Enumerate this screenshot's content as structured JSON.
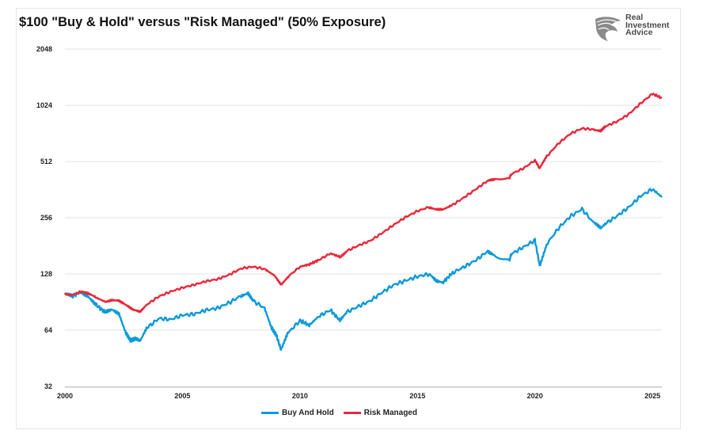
{
  "title": "$100 \"Buy & Hold\" versus \"Risk Managed\" (50% Exposure)",
  "logo": {
    "line1": "Real",
    "line2": "Investment",
    "line3": "Advice",
    "icon": "eagle-head-icon"
  },
  "chart_data": {
    "type": "line",
    "title": "$100 \"Buy & Hold\" versus \"Risk Managed\" (50% Exposure)",
    "xlabel": "",
    "ylabel": "",
    "y_scale": "log2",
    "ylim": [
      32,
      2048
    ],
    "xlim": [
      2000,
      2025.4
    ],
    "y_ticks": [
      "32",
      "64",
      "128",
      "256",
      "512",
      "1024",
      "2048"
    ],
    "x_ticks": [
      "2000",
      "2005",
      "2010",
      "2015",
      "2020",
      "2025"
    ],
    "grid": true,
    "legend": "bottom-center",
    "series": [
      {
        "name": "Buy And Hold",
        "color": "#0e9ad7",
        "points": [
          [
            2000.0,
            100
          ],
          [
            2000.3,
            97
          ],
          [
            2000.7,
            103
          ],
          [
            2001.0,
            97
          ],
          [
            2001.3,
            88
          ],
          [
            2001.7,
            80
          ],
          [
            2002.0,
            83
          ],
          [
            2002.3,
            79
          ],
          [
            2002.6,
            62
          ],
          [
            2002.8,
            56
          ],
          [
            2003.0,
            58
          ],
          [
            2003.2,
            56
          ],
          [
            2003.5,
            66
          ],
          [
            2004.0,
            74
          ],
          [
            2004.5,
            73
          ],
          [
            2005.0,
            77
          ],
          [
            2005.5,
            78
          ],
          [
            2006.0,
            82
          ],
          [
            2006.5,
            84
          ],
          [
            2007.0,
            90
          ],
          [
            2007.5,
            98
          ],
          [
            2007.8,
            101
          ],
          [
            2008.0,
            92
          ],
          [
            2008.5,
            84
          ],
          [
            2008.8,
            66
          ],
          [
            2009.0,
            60
          ],
          [
            2009.2,
            50
          ],
          [
            2009.5,
            62
          ],
          [
            2010.0,
            72
          ],
          [
            2010.4,
            68
          ],
          [
            2010.8,
            76
          ],
          [
            2011.3,
            82
          ],
          [
            2011.7,
            72
          ],
          [
            2012.0,
            80
          ],
          [
            2012.5,
            86
          ],
          [
            2013.0,
            92
          ],
          [
            2013.5,
            102
          ],
          [
            2014.0,
            112
          ],
          [
            2014.5,
            118
          ],
          [
            2015.0,
            124
          ],
          [
            2015.5,
            128
          ],
          [
            2015.8,
            118
          ],
          [
            2016.1,
            116
          ],
          [
            2016.5,
            130
          ],
          [
            2017.0,
            140
          ],
          [
            2017.5,
            152
          ],
          [
            2018.0,
            170
          ],
          [
            2018.3,
            162
          ],
          [
            2018.9,
            150
          ],
          [
            2019.0,
            164
          ],
          [
            2019.5,
            178
          ],
          [
            2020.0,
            194
          ],
          [
            2020.2,
            142
          ],
          [
            2020.5,
            185
          ],
          [
            2021.0,
            225
          ],
          [
            2021.5,
            260
          ],
          [
            2022.0,
            285
          ],
          [
            2022.5,
            240
          ],
          [
            2022.8,
            225
          ],
          [
            2023.0,
            238
          ],
          [
            2023.5,
            262
          ],
          [
            2024.0,
            292
          ],
          [
            2024.5,
            335
          ],
          [
            2025.0,
            365
          ],
          [
            2025.4,
            330
          ]
        ]
      },
      {
        "name": "Risk Managed",
        "color": "#e8283a",
        "points": [
          [
            2000.0,
            100
          ],
          [
            2000.3,
            99
          ],
          [
            2000.7,
            103
          ],
          [
            2001.0,
            100
          ],
          [
            2001.3,
            96
          ],
          [
            2001.7,
            91
          ],
          [
            2002.0,
            93
          ],
          [
            2002.3,
            92
          ],
          [
            2002.6,
            87
          ],
          [
            2002.9,
            82
          ],
          [
            2003.2,
            80
          ],
          [
            2003.5,
            88
          ],
          [
            2004.0,
            97
          ],
          [
            2004.5,
            103
          ],
          [
            2005.0,
            108
          ],
          [
            2005.5,
            112
          ],
          [
            2006.0,
            117
          ],
          [
            2006.5,
            120
          ],
          [
            2007.0,
            127
          ],
          [
            2007.5,
            137
          ],
          [
            2008.0,
            140
          ],
          [
            2008.5,
            136
          ],
          [
            2008.9,
            126
          ],
          [
            2009.2,
            112
          ],
          [
            2009.5,
            124
          ],
          [
            2010.0,
            140
          ],
          [
            2010.4,
            144
          ],
          [
            2010.8,
            152
          ],
          [
            2011.3,
            165
          ],
          [
            2011.7,
            158
          ],
          [
            2012.0,
            170
          ],
          [
            2012.5,
            182
          ],
          [
            2013.0,
            193
          ],
          [
            2013.5,
            212
          ],
          [
            2014.0,
            235
          ],
          [
            2014.5,
            258
          ],
          [
            2015.0,
            278
          ],
          [
            2015.5,
            292
          ],
          [
            2015.8,
            285
          ],
          [
            2016.1,
            284
          ],
          [
            2016.5,
            300
          ],
          [
            2017.0,
            330
          ],
          [
            2017.5,
            365
          ],
          [
            2018.0,
            405
          ],
          [
            2018.3,
            410
          ],
          [
            2018.9,
            415
          ],
          [
            2019.0,
            440
          ],
          [
            2019.5,
            470
          ],
          [
            2020.0,
            520
          ],
          [
            2020.2,
            470
          ],
          [
            2020.5,
            545
          ],
          [
            2021.0,
            640
          ],
          [
            2021.5,
            720
          ],
          [
            2022.0,
            770
          ],
          [
            2022.5,
            760
          ],
          [
            2022.8,
            750
          ],
          [
            2023.0,
            790
          ],
          [
            2023.5,
            840
          ],
          [
            2024.0,
            920
          ],
          [
            2024.5,
            1050
          ],
          [
            2025.0,
            1180
          ],
          [
            2025.4,
            1120
          ]
        ]
      }
    ]
  }
}
